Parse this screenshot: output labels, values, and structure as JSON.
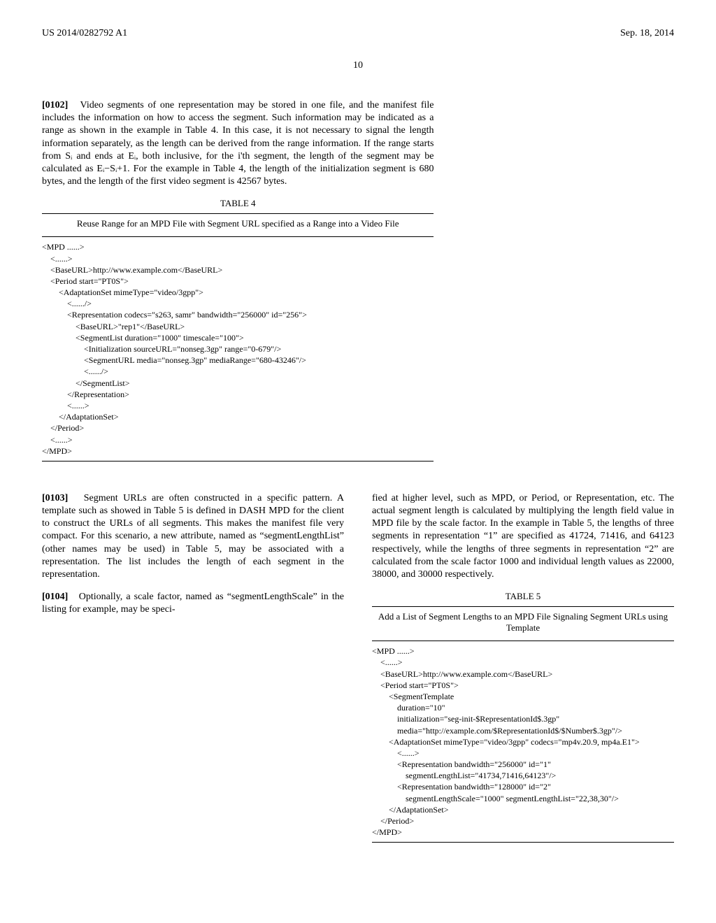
{
  "header": {
    "left": "US 2014/0282792 A1",
    "right": "Sep. 18, 2014"
  },
  "page_number": "10",
  "paragraphs": {
    "p102": {
      "num": "[0102]",
      "text": "Video segments of one representation may be stored in one file, and the manifest file includes the information on how to access the segment. Such information may be indicated as a range as shown in the example in Table 4. In this case, it is not necessary to signal the length information separately, as the length can be derived from the range information. If the range starts from Sᵢ and ends at Eᵢ, both inclusive, for the i'th segment, the length of the segment may be calculated as Eᵢ−Sᵢ+1. For the example in Table 4, the length of the initialization segment is 680 bytes, and the length of the first video segment is 42567 bytes."
    },
    "p103": {
      "num": "[0103]",
      "text": "Segment URLs are often constructed in a specific pattern. A template such as showed in Table 5 is defined in DASH MPD for the client to construct the URLs of all segments. This makes the manifest file very compact. For this scenario, a new attribute, named as “segmentLengthList” (other names may be used) in Table 5, may be associated with a representation. The list includes the length of each segment in the representation."
    },
    "p104": {
      "num": "[0104]",
      "text": "Optionally, a scale factor, named as “segmentLengthScale” in the listing for example, may be speci-"
    },
    "p103_right": "fied at higher level, such as MPD, or Period, or Representation, etc. The actual segment length is calculated by multiplying the length field value in MPD file by the scale factor. In the example in Table 5, the lengths of three segments in representation “1” are specified as 41724, 71416, and 64123 respectively, while the lengths of three segments in representation “2” are calculated from the scale factor 1000 and individual length values as 22000, 38000, and 30000 respectively."
  },
  "tables": {
    "t4": {
      "caption": "TABLE 4",
      "title": "Reuse Range for an MPD File with Segment URL specified as a Range into a Video File",
      "code": "<MPD ......>\n    <......>\n    <BaseURL>http://www.example.com</BaseURL>\n    <Period start=\"PT0S\">\n        <AdaptationSet mimeType=\"video/3gpp\">\n            <....../>\n            <Representation codecs=\"s263, samr\" bandwidth=\"256000\" id=\"256\">\n                <BaseURL>\"rep1\"</BaseURL>\n                <SegmentList duration=\"1000\" timescale=\"100\">\n                    <Initialization sourceURL=\"nonseg.3gp\" range=\"0-679\"/>\n                    <SegmentURL media=\"nonseg.3gp\" mediaRange=\"680-43246\"/>\n                    <....../>\n                </SegmentList>\n            </Representation>\n            <......>\n        </AdaptationSet>\n    </Period>\n    <......>\n</MPD>"
    },
    "t5": {
      "caption": "TABLE 5",
      "title": "Add a List of Segment Lengths to an MPD File Signaling Segment URLs using Template",
      "code": "<MPD ......>\n    <......>\n    <BaseURL>http://www.example.com</BaseURL>\n    <Period start=\"PT0S\">\n        <SegmentTemplate\n            duration=\"10\"\n            initialization=\"seg-init-$RepresentationId$.3gp\"\n            media=\"http://example.com/$RepresentationId$/$Number$.3gp\"/>\n        <AdaptationSet mimeType=\"video/3gpp\" codecs=\"mp4v.20.9, mp4a.E1\">\n            <......>\n            <Representation bandwidth=\"256000\" id=\"1\"\n                segmentLengthList=\"41734,71416,64123\"/>\n            <Representation bandwidth=\"128000\" id=\"2\"\n                segmentLengthScale=\"1000\" segmentLengthList=\"22,38,30\"/>\n        </AdaptationSet>\n    </Period>\n</MPD>"
    }
  }
}
